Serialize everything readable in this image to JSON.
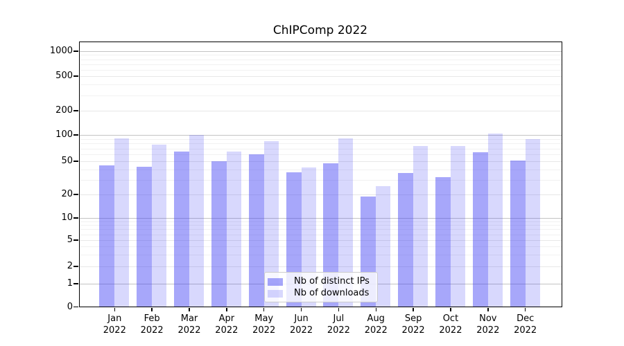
{
  "chart_data": {
    "type": "bar",
    "title": "ChIPComp 2022",
    "months": [
      "Jan",
      "Feb",
      "Mar",
      "Apr",
      "May",
      "Jun",
      "Jul",
      "Aug",
      "Sep",
      "Oct",
      "Nov",
      "Dec"
    ],
    "year_label": "2022",
    "series": [
      {
        "name": "Nb of distinct IPs",
        "color": "rgba(60,60,245,0.45)",
        "color_hex_on_white": "#a8a8f8",
        "values": [
          45,
          43,
          64,
          50,
          60,
          37,
          47,
          19,
          36,
          32,
          63,
          51
        ]
      },
      {
        "name": "Nb of downloads",
        "color": "rgba(60,60,245,0.20)",
        "color_hex_on_white": "#d8d8f8",
        "values": [
          92,
          77,
          100,
          65,
          85,
          42,
          92,
          25,
          75,
          75,
          105,
          90
        ]
      }
    ],
    "yticks": [
      0,
      1,
      2,
      5,
      10,
      20,
      50,
      100,
      200,
      500,
      1000
    ],
    "ytick_labels": [
      "0",
      "1",
      "2",
      "5",
      "10",
      "20",
      "50",
      "100",
      "200",
      "500",
      "1000"
    ],
    "yscale": "log-like (symlog, linear below 1)",
    "ylim": [
      0,
      1300
    ],
    "grid": "on",
    "legend": {
      "position": "bottom-center"
    }
  }
}
